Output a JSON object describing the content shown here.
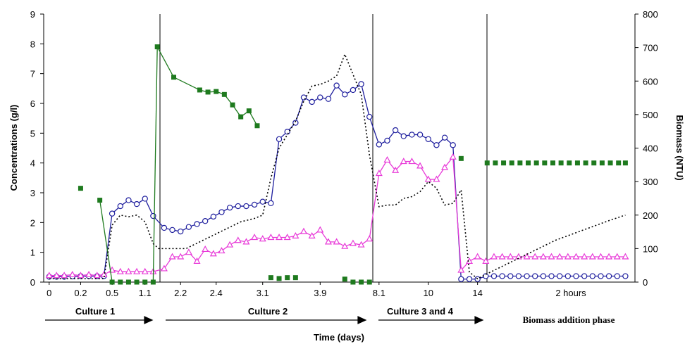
{
  "chart_data": {
    "type": "line",
    "ylabel": "Concentrations (g/l)",
    "y2label": "Biomass (NTU)",
    "xlabel": "Time (days)",
    "ylim": [
      0,
      9
    ],
    "y2lim": [
      0,
      800
    ],
    "yticks": [
      "0",
      "1",
      "2",
      "3",
      "4",
      "5",
      "6",
      "7",
      "8",
      "9"
    ],
    "y2ticks": [
      "0",
      "100",
      "200",
      "300",
      "400",
      "500",
      "600",
      "700",
      "800"
    ],
    "xticks": [
      "0",
      "0.2",
      "0.5",
      "1.1",
      "2.2",
      "2.4",
      "3.1",
      "3.9",
      "8.1",
      "10",
      "14"
    ],
    "note": "2 hours",
    "phases": [
      "Culture 1",
      "Culture 2",
      "Culture 3 and 4",
      "Biomass addition phase"
    ],
    "colors": {
      "blue": "#1f1f9e",
      "magenta": "#e83ad8",
      "green": "#1e7a1e",
      "black": "#000000"
    },
    "series": [
      {
        "axis": "left",
        "color": "#1f1f9e",
        "marker": "circle",
        "values": [
          [
            0.0,
            0.18
          ],
          [
            0.27,
            0.18
          ],
          [
            0.55,
            0.18
          ],
          [
            0.85,
            0.19
          ],
          [
            1.15,
            0.2
          ],
          [
            1.45,
            0.2
          ],
          [
            1.75,
            0.2
          ],
          [
            2.0,
            0.2
          ],
          [
            2.3,
            2.3
          ],
          [
            2.6,
            2.55
          ],
          [
            2.9,
            2.75
          ],
          [
            3.2,
            2.62
          ],
          [
            3.5,
            2.8
          ],
          [
            3.8,
            2.22
          ],
          [
            4.2,
            1.82
          ],
          [
            4.5,
            1.75
          ],
          [
            4.8,
            1.7
          ],
          [
            5.1,
            1.85
          ],
          [
            5.4,
            1.95
          ],
          [
            5.7,
            2.05
          ],
          [
            6.0,
            2.2
          ],
          [
            6.3,
            2.35
          ],
          [
            6.6,
            2.5
          ],
          [
            6.9,
            2.55
          ],
          [
            7.2,
            2.55
          ],
          [
            7.5,
            2.6
          ],
          [
            7.8,
            2.7
          ],
          [
            8.1,
            2.65
          ],
          [
            8.4,
            4.8
          ],
          [
            8.7,
            5.05
          ],
          [
            9.0,
            5.35
          ],
          [
            9.3,
            6.2
          ],
          [
            9.6,
            6.05
          ],
          [
            9.9,
            6.2
          ],
          [
            10.2,
            6.15
          ],
          [
            10.5,
            6.6
          ],
          [
            10.8,
            6.3
          ],
          [
            11.1,
            6.45
          ],
          [
            11.4,
            6.65
          ],
          [
            11.7,
            5.55
          ],
          [
            12.05,
            4.62
          ],
          [
            12.35,
            4.75
          ],
          [
            12.65,
            5.1
          ],
          [
            12.95,
            4.9
          ],
          [
            13.25,
            4.95
          ],
          [
            13.55,
            4.95
          ],
          [
            13.85,
            4.8
          ],
          [
            14.15,
            4.6
          ],
          [
            14.45,
            4.85
          ],
          [
            14.75,
            4.6
          ],
          [
            15.05,
            0.1
          ],
          [
            15.35,
            0.1
          ],
          [
            15.65,
            0.1
          ],
          [
            15.95,
            0.2
          ],
          [
            16.25,
            0.2
          ],
          [
            16.55,
            0.2
          ],
          [
            16.85,
            0.2
          ],
          [
            17.15,
            0.2
          ],
          [
            17.45,
            0.2
          ],
          [
            17.75,
            0.2
          ],
          [
            18.05,
            0.2
          ],
          [
            18.35,
            0.2
          ],
          [
            18.65,
            0.2
          ],
          [
            18.95,
            0.2
          ],
          [
            19.25,
            0.2
          ],
          [
            19.55,
            0.2
          ],
          [
            19.85,
            0.2
          ],
          [
            20.15,
            0.2
          ],
          [
            20.45,
            0.2
          ],
          [
            20.75,
            0.2
          ],
          [
            21.05,
            0.2
          ]
        ]
      },
      {
        "axis": "left",
        "color": "#e83ad8",
        "marker": "triangle",
        "values": [
          [
            0.0,
            0.22
          ],
          [
            0.27,
            0.22
          ],
          [
            0.55,
            0.22
          ],
          [
            0.85,
            0.25
          ],
          [
            1.15,
            0.22
          ],
          [
            1.45,
            0.25
          ],
          [
            1.75,
            0.22
          ],
          [
            2.0,
            0.25
          ],
          [
            2.3,
            0.4
          ],
          [
            2.6,
            0.35
          ],
          [
            2.9,
            0.35
          ],
          [
            3.2,
            0.35
          ],
          [
            3.5,
            0.35
          ],
          [
            3.8,
            0.35
          ],
          [
            4.2,
            0.45
          ],
          [
            4.5,
            0.85
          ],
          [
            4.8,
            0.85
          ],
          [
            5.1,
            1.0
          ],
          [
            5.4,
            0.7
          ],
          [
            5.7,
            1.1
          ],
          [
            6.0,
            0.95
          ],
          [
            6.3,
            1.05
          ],
          [
            6.6,
            1.25
          ],
          [
            6.9,
            1.4
          ],
          [
            7.2,
            1.35
          ],
          [
            7.5,
            1.5
          ],
          [
            7.8,
            1.45
          ],
          [
            8.1,
            1.5
          ],
          [
            8.4,
            1.5
          ],
          [
            8.7,
            1.5
          ],
          [
            9.0,
            1.55
          ],
          [
            9.3,
            1.7
          ],
          [
            9.6,
            1.55
          ],
          [
            9.9,
            1.75
          ],
          [
            10.2,
            1.35
          ],
          [
            10.5,
            1.35
          ],
          [
            10.8,
            1.2
          ],
          [
            11.1,
            1.3
          ],
          [
            11.4,
            1.25
          ],
          [
            11.7,
            1.45
          ],
          [
            12.05,
            3.65
          ],
          [
            12.35,
            4.1
          ],
          [
            12.65,
            3.75
          ],
          [
            12.95,
            4.05
          ],
          [
            13.25,
            4.05
          ],
          [
            13.55,
            3.9
          ],
          [
            13.85,
            3.45
          ],
          [
            14.15,
            3.45
          ],
          [
            14.45,
            3.85
          ],
          [
            14.75,
            4.2
          ],
          [
            15.05,
            0.4
          ],
          [
            15.35,
            0.7
          ],
          [
            15.65,
            0.85
          ],
          [
            15.95,
            0.7
          ],
          [
            16.25,
            0.85
          ],
          [
            16.55,
            0.85
          ],
          [
            16.85,
            0.85
          ],
          [
            17.15,
            0.85
          ],
          [
            17.45,
            0.85
          ],
          [
            17.75,
            0.85
          ],
          [
            18.05,
            0.85
          ],
          [
            18.35,
            0.85
          ],
          [
            18.65,
            0.85
          ],
          [
            18.95,
            0.85
          ],
          [
            19.25,
            0.85
          ],
          [
            19.55,
            0.85
          ],
          [
            19.85,
            0.85
          ],
          [
            20.15,
            0.85
          ],
          [
            20.45,
            0.85
          ],
          [
            20.75,
            0.85
          ],
          [
            21.05,
            0.85
          ]
        ]
      },
      {
        "axis": "left",
        "color": "#1e7a1e",
        "marker": "square",
        "values": [
          [
            1.15,
            3.15
          ],
          [
            1.85,
            2.75
          ],
          [
            2.3,
            0.0
          ],
          [
            2.6,
            0.0
          ],
          [
            2.9,
            0.0
          ],
          [
            3.2,
            0.0
          ],
          [
            3.5,
            0.0
          ],
          [
            3.8,
            0.0
          ],
          [
            3.95,
            7.9
          ],
          [
            4.55,
            6.88
          ],
          [
            5.5,
            6.45
          ],
          [
            5.8,
            6.38
          ],
          [
            6.1,
            6.4
          ],
          [
            6.4,
            6.3
          ],
          [
            6.7,
            5.95
          ],
          [
            7.0,
            5.55
          ],
          [
            7.3,
            5.75
          ],
          [
            7.6,
            5.25
          ],
          [
            8.1,
            0.15
          ],
          [
            8.4,
            0.12
          ],
          [
            8.7,
            0.15
          ],
          [
            9.0,
            0.15
          ],
          [
            10.8,
            0.1
          ],
          [
            11.1,
            0.0
          ],
          [
            11.4,
            0.0
          ],
          [
            11.7,
            0.0
          ],
          [
            15.05,
            4.15
          ],
          [
            16.0,
            4.0
          ],
          [
            16.3,
            4.0
          ],
          [
            16.6,
            4.0
          ],
          [
            16.9,
            4.0
          ],
          [
            17.2,
            4.0
          ],
          [
            17.5,
            4.0
          ],
          [
            17.8,
            4.0
          ],
          [
            18.1,
            4.0
          ],
          [
            18.4,
            4.0
          ],
          [
            18.7,
            4.0
          ],
          [
            19.0,
            4.0
          ],
          [
            19.3,
            4.0
          ],
          [
            19.6,
            4.0
          ],
          [
            19.9,
            4.0
          ],
          [
            20.2,
            4.0
          ],
          [
            20.5,
            4.0
          ],
          [
            20.8,
            4.0
          ],
          [
            21.05,
            4.0
          ]
        ],
        "segments": [
          [
            1,
            2
          ],
          [
            7,
            8
          ]
        ]
      },
      {
        "axis": "right",
        "color": "#000000",
        "dashed": true,
        "values": [
          [
            0.0,
            10
          ],
          [
            0.55,
            10
          ],
          [
            1.15,
            10
          ],
          [
            2.0,
            10
          ],
          [
            2.3,
            170
          ],
          [
            2.6,
            200
          ],
          [
            2.9,
            195
          ],
          [
            3.2,
            200
          ],
          [
            3.5,
            180
          ],
          [
            3.8,
            115
          ],
          [
            4.0,
            100
          ],
          [
            4.5,
            100
          ],
          [
            5.0,
            100
          ],
          [
            5.5,
            120
          ],
          [
            6.0,
            140
          ],
          [
            6.5,
            160
          ],
          [
            7.0,
            180
          ],
          [
            7.5,
            190
          ],
          [
            7.8,
            200
          ],
          [
            8.1,
            310
          ],
          [
            8.4,
            400
          ],
          [
            8.7,
            440
          ],
          [
            9.0,
            480
          ],
          [
            9.3,
            540
          ],
          [
            9.6,
            585
          ],
          [
            9.9,
            590
          ],
          [
            10.2,
            600
          ],
          [
            10.5,
            615
          ],
          [
            10.8,
            680
          ],
          [
            11.1,
            620
          ],
          [
            11.4,
            560
          ],
          [
            11.7,
            380
          ],
          [
            12.05,
            225
          ],
          [
            12.35,
            230
          ],
          [
            12.65,
            230
          ],
          [
            12.95,
            250
          ],
          [
            13.25,
            255
          ],
          [
            13.55,
            270
          ],
          [
            13.85,
            300
          ],
          [
            14.15,
            280
          ],
          [
            14.45,
            230
          ],
          [
            14.75,
            235
          ],
          [
            15.05,
            275
          ],
          [
            15.35,
            30
          ],
          [
            15.65,
            10
          ],
          [
            16.0,
            25
          ],
          [
            16.5,
            45
          ],
          [
            17.0,
            65
          ],
          [
            17.5,
            85
          ],
          [
            18.0,
            105
          ],
          [
            18.5,
            125
          ],
          [
            19.0,
            140
          ],
          [
            19.5,
            155
          ],
          [
            20.0,
            170
          ],
          [
            20.5,
            185
          ],
          [
            21.05,
            200
          ]
        ]
      }
    ]
  }
}
